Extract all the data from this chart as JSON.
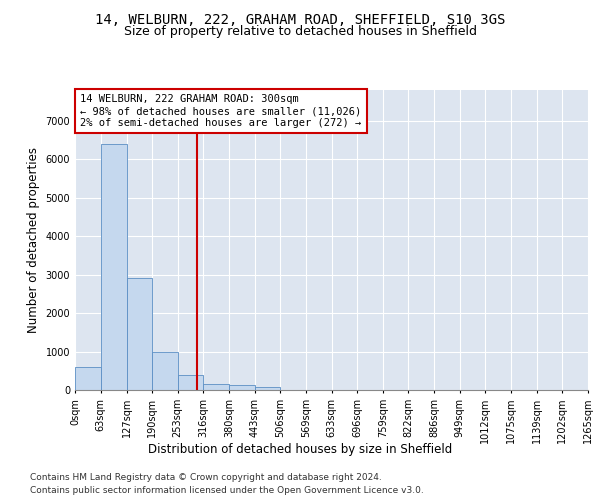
{
  "title": "14, WELBURN, 222, GRAHAM ROAD, SHEFFIELD, S10 3GS",
  "subtitle": "Size of property relative to detached houses in Sheffield",
  "xlabel": "Distribution of detached houses by size in Sheffield",
  "ylabel": "Number of detached properties",
  "bar_values": [
    600,
    6400,
    2900,
    1000,
    380,
    150,
    120,
    80,
    0,
    0,
    0,
    0,
    0,
    0,
    0,
    0,
    0,
    0,
    0,
    0
  ],
  "bin_edges": [
    0,
    63,
    127,
    190,
    253,
    316,
    380,
    443,
    506,
    569,
    633,
    696,
    759,
    822,
    886,
    949,
    1012,
    1075,
    1139,
    1202,
    1265
  ],
  "bar_color": "#c5d8ee",
  "bar_edge_color": "#5b8ec4",
  "background_color": "#dde5f0",
  "grid_color": "#ffffff",
  "property_size": 300,
  "annotation_text": "14 WELBURN, 222 GRAHAM ROAD: 300sqm\n← 98% of detached houses are smaller (11,026)\n2% of semi-detached houses are larger (272) →",
  "vline_color": "#cc0000",
  "annotation_box_color": "#cc0000",
  "ylim": [
    0,
    7800
  ],
  "yticks": [
    0,
    1000,
    2000,
    3000,
    4000,
    5000,
    6000,
    7000
  ],
  "footer_line1": "Contains HM Land Registry data © Crown copyright and database right 2024.",
  "footer_line2": "Contains public sector information licensed under the Open Government Licence v3.0.",
  "title_fontsize": 10,
  "subtitle_fontsize": 9,
  "axis_label_fontsize": 8.5,
  "tick_fontsize": 7,
  "annotation_fontsize": 7.5,
  "footer_fontsize": 6.5
}
